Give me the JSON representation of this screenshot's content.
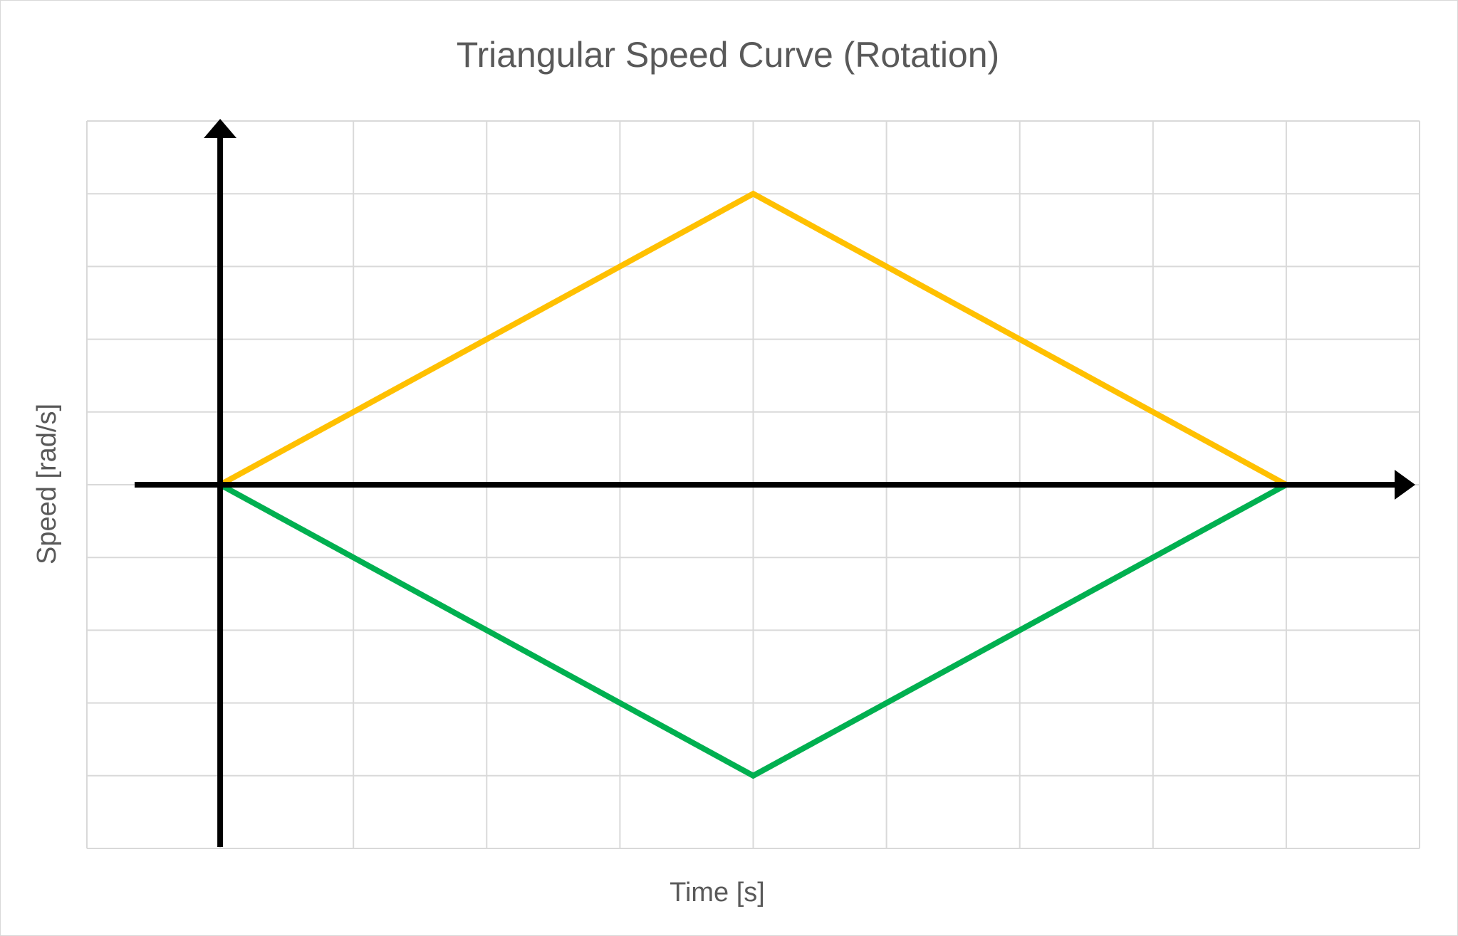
{
  "chart_data": {
    "type": "line",
    "title": "Triangular Speed Curve (Rotation)",
    "xlabel": "Time [s]",
    "ylabel": "Speed [rad/s]",
    "xlim": [
      -1,
      9
    ],
    "ylim": [
      -5,
      5
    ],
    "grid": true,
    "legend": "none",
    "series": [
      {
        "color": "#FFC000",
        "x": [
          0,
          4,
          8
        ],
        "y": [
          0,
          4,
          0
        ]
      },
      {
        "color": "#00B050",
        "x": [
          0,
          4,
          8
        ],
        "y": [
          0,
          -4,
          0
        ]
      }
    ],
    "axis_color": "#000000",
    "grid_color": "#d9d9d9"
  }
}
